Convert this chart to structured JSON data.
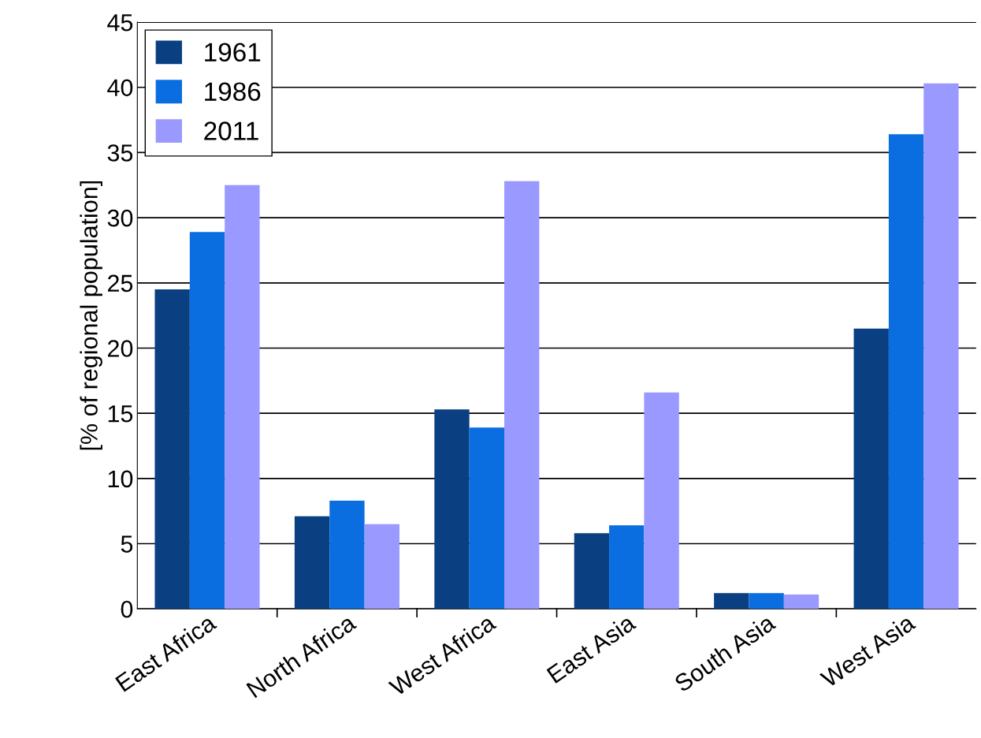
{
  "chart_data": {
    "type": "bar",
    "ylabel": "[% of regional population]",
    "categories": [
      "East Africa",
      "North Africa",
      "West Africa",
      "East Asia",
      "South Asia",
      "West Asia"
    ],
    "series": [
      {
        "name": "1961",
        "color": "#0a3f82",
        "values": [
          24.5,
          7.1,
          15.3,
          5.8,
          1.2,
          21.5
        ]
      },
      {
        "name": "1986",
        "color": "#0a6ee0",
        "values": [
          28.9,
          8.3,
          13.9,
          6.4,
          1.2,
          36.4
        ]
      },
      {
        "name": "2011",
        "color": "#9999ff",
        "values": [
          32.5,
          6.5,
          32.8,
          16.6,
          1.1,
          40.3
        ]
      }
    ],
    "ylim": [
      0,
      45
    ],
    "yticks": [
      0,
      5,
      10,
      15,
      20,
      25,
      30,
      35,
      40,
      45
    ],
    "grid": "y",
    "legend": "top left"
  }
}
